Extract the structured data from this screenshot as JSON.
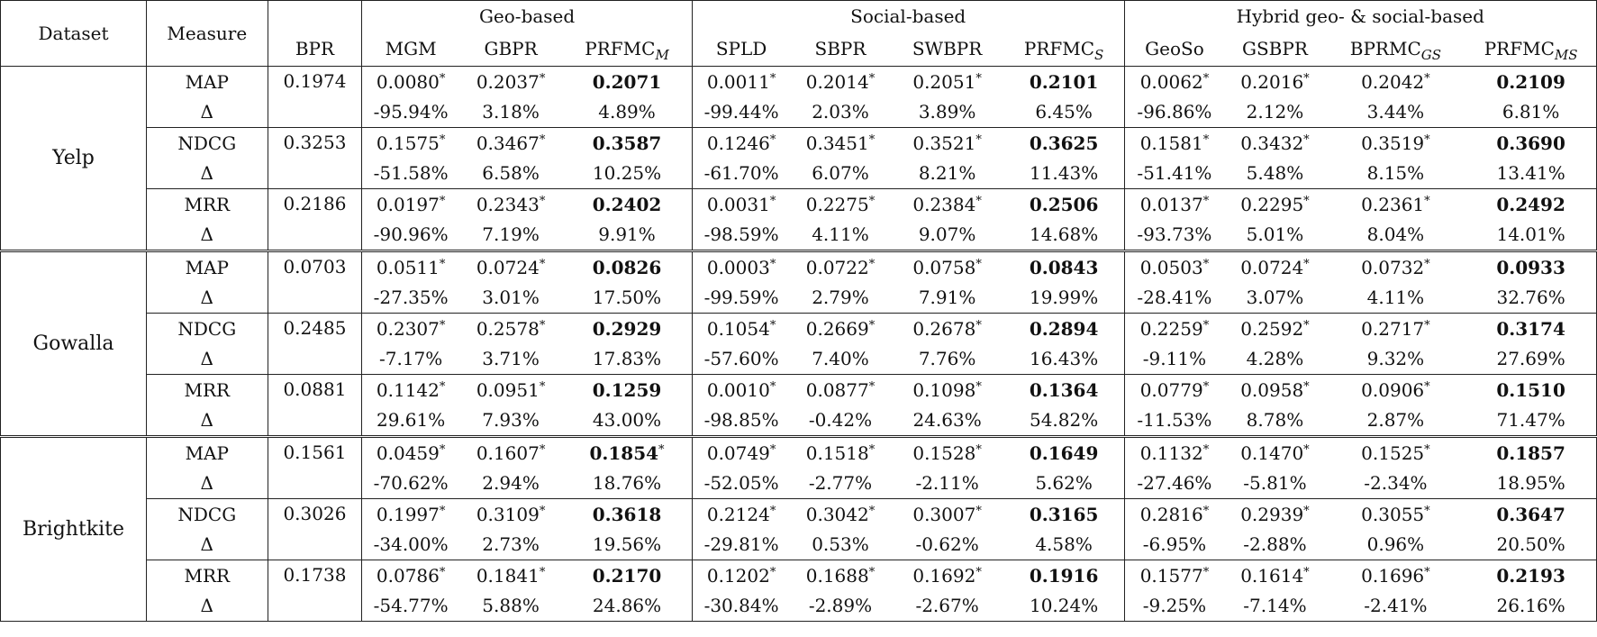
{
  "header": {
    "dataset": "Dataset",
    "measure": "Measure",
    "bpr": "BPR",
    "groups": [
      {
        "label": "Geo-based"
      },
      {
        "label": "Social-based"
      },
      {
        "label": "Hybrid geo- & social-based"
      }
    ],
    "methods": [
      {
        "main": "MGM",
        "sub": ""
      },
      {
        "main": "GBPR",
        "sub": ""
      },
      {
        "main": "PRFMC",
        "sub": "M"
      },
      {
        "main": "SPLD",
        "sub": ""
      },
      {
        "main": "SBPR",
        "sub": ""
      },
      {
        "main": "SWBPR",
        "sub": ""
      },
      {
        "main": "PRFMC",
        "sub": "S"
      },
      {
        "main": "GeoSo",
        "sub": ""
      },
      {
        "main": "GSBPR",
        "sub": ""
      },
      {
        "main": "BPRMC",
        "sub": "GS"
      },
      {
        "main": "PRFMC",
        "sub": "MS"
      }
    ]
  },
  "bold_columns": [
    2,
    6,
    10
  ],
  "star": "*",
  "delta_symbol": "Δ",
  "datasets": [
    {
      "name": "Yelp",
      "measures": [
        {
          "name": "MAP",
          "bpr": "0.1974",
          "values": [
            "0.0080",
            "0.2037",
            "0.2071",
            "0.0011",
            "0.2014",
            "0.2051",
            "0.2101",
            "0.0062",
            "0.2016",
            "0.2042",
            "0.2109"
          ],
          "stars": [
            true,
            true,
            false,
            true,
            true,
            true,
            false,
            true,
            true,
            true,
            false
          ],
          "deltas": [
            "-95.94%",
            "3.18%",
            "4.89%",
            "-99.44%",
            "2.03%",
            "3.89%",
            "6.45%",
            "-96.86%",
            "2.12%",
            "3.44%",
            "6.81%"
          ]
        },
        {
          "name": "NDCG",
          "bpr": "0.3253",
          "values": [
            "0.1575",
            "0.3467",
            "0.3587",
            "0.1246",
            "0.3451",
            "0.3521",
            "0.3625",
            "0.1581",
            "0.3432",
            "0.3519",
            "0.3690"
          ],
          "stars": [
            true,
            true,
            false,
            true,
            true,
            true,
            false,
            true,
            true,
            true,
            false
          ],
          "deltas": [
            "-51.58%",
            "6.58%",
            "10.25%",
            "-61.70%",
            "6.07%",
            "8.21%",
            "11.43%",
            "-51.41%",
            "5.48%",
            "8.15%",
            "13.41%"
          ]
        },
        {
          "name": "MRR",
          "bpr": "0.2186",
          "values": [
            "0.0197",
            "0.2343",
            "0.2402",
            "0.0031",
            "0.2275",
            "0.2384",
            "0.2506",
            "0.0137",
            "0.2295",
            "0.2361",
            "0.2492"
          ],
          "stars": [
            true,
            true,
            false,
            true,
            true,
            true,
            false,
            true,
            true,
            true,
            false
          ],
          "deltas": [
            "-90.96%",
            "7.19%",
            "9.91%",
            "-98.59%",
            "4.11%",
            "9.07%",
            "14.68%",
            "-93.73%",
            "5.01%",
            "8.04%",
            "14.01%"
          ]
        }
      ]
    },
    {
      "name": "Gowalla",
      "measures": [
        {
          "name": "MAP",
          "bpr": "0.0703",
          "values": [
            "0.0511",
            "0.0724",
            "0.0826",
            "0.0003",
            "0.0722",
            "0.0758",
            "0.0843",
            "0.0503",
            "0.0724",
            "0.0732",
            "0.0933"
          ],
          "stars": [
            true,
            true,
            false,
            true,
            true,
            true,
            false,
            true,
            true,
            true,
            false
          ],
          "deltas": [
            "-27.35%",
            "3.01%",
            "17.50%",
            "-99.59%",
            "2.79%",
            "7.91%",
            "19.99%",
            "-28.41%",
            "3.07%",
            "4.11%",
            "32.76%"
          ]
        },
        {
          "name": "NDCG",
          "bpr": "0.2485",
          "values": [
            "0.2307",
            "0.2578",
            "0.2929",
            "0.1054",
            "0.2669",
            "0.2678",
            "0.2894",
            "0.2259",
            "0.2592",
            "0.2717",
            "0.3174"
          ],
          "stars": [
            true,
            true,
            false,
            true,
            true,
            true,
            false,
            true,
            true,
            true,
            false
          ],
          "deltas": [
            "-7.17%",
            "3.71%",
            "17.83%",
            "-57.60%",
            "7.40%",
            "7.76%",
            "16.43%",
            "-9.11%",
            "4.28%",
            "9.32%",
            "27.69%"
          ]
        },
        {
          "name": "MRR",
          "bpr": "0.0881",
          "values": [
            "0.1142",
            "0.0951",
            "0.1259",
            "0.0010",
            "0.0877",
            "0.1098",
            "0.1364",
            "0.0779",
            "0.0958",
            "0.0906",
            "0.1510"
          ],
          "stars": [
            true,
            true,
            false,
            true,
            true,
            true,
            false,
            true,
            true,
            true,
            false
          ],
          "deltas": [
            "29.61%",
            "7.93%",
            "43.00%",
            "-98.85%",
            "-0.42%",
            "24.63%",
            "54.82%",
            "-11.53%",
            "8.78%",
            "2.87%",
            "71.47%"
          ]
        }
      ]
    },
    {
      "name": "Brightkite",
      "measures": [
        {
          "name": "MAP",
          "bpr": "0.1561",
          "values": [
            "0.0459",
            "0.1607",
            "0.1854",
            "0.0749",
            "0.1518",
            "0.1528",
            "0.1649",
            "0.1132",
            "0.1470",
            "0.1525",
            "0.1857"
          ],
          "stars": [
            true,
            true,
            true,
            true,
            true,
            true,
            false,
            true,
            true,
            true,
            false
          ],
          "deltas": [
            "-70.62%",
            "2.94%",
            "18.76%",
            "-52.05%",
            "-2.77%",
            "-2.11%",
            "5.62%",
            "-27.46%",
            "-5.81%",
            "-2.34%",
            "18.95%"
          ]
        },
        {
          "name": "NDCG",
          "bpr": "0.3026",
          "values": [
            "0.1997",
            "0.3109",
            "0.3618",
            "0.2124",
            "0.3042",
            "0.3007",
            "0.3165",
            "0.2816",
            "0.2939",
            "0.3055",
            "0.3647"
          ],
          "stars": [
            true,
            true,
            false,
            true,
            true,
            true,
            false,
            true,
            true,
            true,
            false
          ],
          "deltas": [
            "-34.00%",
            "2.73%",
            "19.56%",
            "-29.81%",
            "0.53%",
            "-0.62%",
            "4.58%",
            "-6.95%",
            "-2.88%",
            "0.96%",
            "20.50%"
          ]
        },
        {
          "name": "MRR",
          "bpr": "0.1738",
          "values": [
            "0.0786",
            "0.1841",
            "0.2170",
            "0.1202",
            "0.1688",
            "0.1692",
            "0.1916",
            "0.1577",
            "0.1614",
            "0.1696",
            "0.2193"
          ],
          "stars": [
            true,
            true,
            false,
            true,
            true,
            true,
            false,
            true,
            true,
            true,
            false
          ],
          "deltas": [
            "-54.77%",
            "5.88%",
            "24.86%",
            "-30.84%",
            "-2.89%",
            "-2.67%",
            "10.24%",
            "-9.25%",
            "-7.14%",
            "-2.41%",
            "26.16%"
          ]
        }
      ]
    }
  ]
}
